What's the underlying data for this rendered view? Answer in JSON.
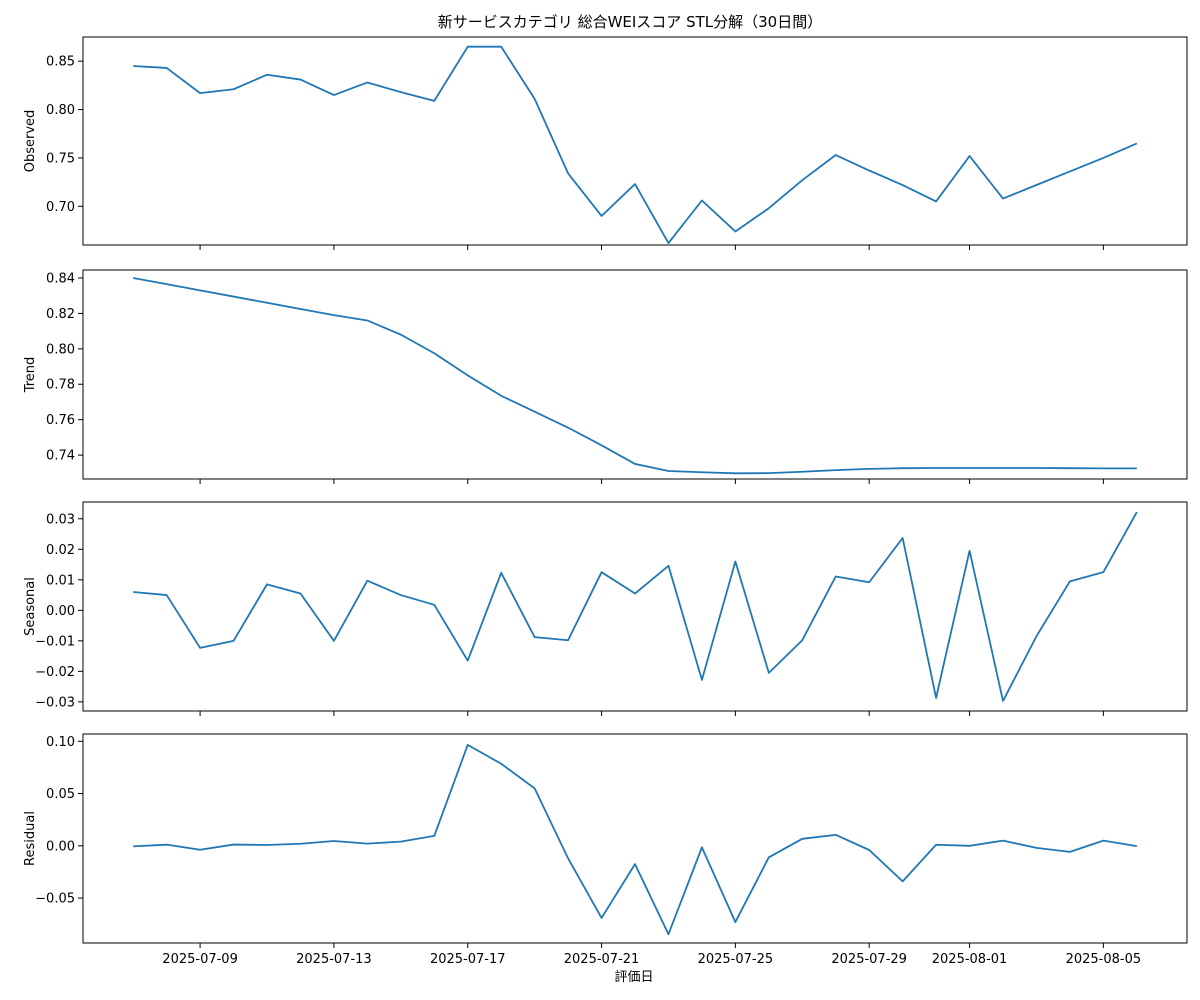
{
  "chart_data": {
    "type": "line",
    "title": "新サービスカテゴリ 総合WEIスコア STL分解（30日間）",
    "xlabel": "評価日",
    "x": [
      "2025-07-07",
      "2025-07-08",
      "2025-07-09",
      "2025-07-10",
      "2025-07-11",
      "2025-07-12",
      "2025-07-13",
      "2025-07-14",
      "2025-07-15",
      "2025-07-16",
      "2025-07-17",
      "2025-07-18",
      "2025-07-19",
      "2025-07-20",
      "2025-07-21",
      "2025-07-22",
      "2025-07-23",
      "2025-07-24",
      "2025-07-25",
      "2025-07-26",
      "2025-07-27",
      "2025-07-28",
      "2025-07-29",
      "2025-07-30",
      "2025-07-31",
      "2025-08-01",
      "2025-08-02",
      "2025-08-03",
      "2025-08-04",
      "2025-08-05",
      "2025-08-06"
    ],
    "x_ticks": [
      "2025-07-09",
      "2025-07-13",
      "2025-07-17",
      "2025-07-21",
      "2025-07-25",
      "2025-07-29",
      "2025-08-01",
      "2025-08-05"
    ],
    "panels": [
      {
        "ylabel": "Observed",
        "ylim": [
          0.66,
          0.875
        ],
        "yticks": [
          0.7,
          0.75,
          0.8,
          0.85
        ],
        "ytick_labels": [
          "0.70",
          "0.75",
          "0.80",
          "0.85"
        ],
        "values": [
          0.845,
          0.843,
          0.817,
          0.821,
          0.836,
          0.831,
          0.815,
          0.828,
          0.818,
          0.809,
          0.865,
          0.865,
          0.811,
          0.734,
          0.69,
          0.723,
          0.662,
          0.706,
          0.674,
          0.698,
          0.727,
          0.753,
          0.737,
          0.722,
          0.705,
          0.752,
          0.708,
          0.722,
          0.736,
          0.75,
          0.765
        ]
      },
      {
        "ylabel": "Trend",
        "ylim": [
          0.7265,
          0.8445
        ],
        "yticks": [
          0.74,
          0.76,
          0.78,
          0.8,
          0.82,
          0.84
        ],
        "ytick_labels": [
          "0.74",
          "0.76",
          "0.78",
          "0.80",
          "0.82",
          "0.84"
        ],
        "values": [
          0.84,
          0.8365,
          0.833,
          0.8295,
          0.826,
          0.8225,
          0.819,
          0.816,
          0.808,
          0.7975,
          0.785,
          0.7735,
          0.7645,
          0.7555,
          0.7455,
          0.735,
          0.731,
          0.7303,
          0.7297,
          0.7298,
          0.7306,
          0.7315,
          0.7322,
          0.7326,
          0.7327,
          0.7327,
          0.7327,
          0.7327,
          0.7326,
          0.7325,
          0.7325
        ]
      },
      {
        "ylabel": "Seasonal",
        "ylim": [
          -0.033,
          0.0355
        ],
        "yticks": [
          -0.03,
          -0.02,
          -0.01,
          0.0,
          0.01,
          0.02,
          0.03
        ],
        "ytick_labels": [
          "−0.03",
          "−0.02",
          "−0.01",
          "0.00",
          "0.01",
          "0.02",
          "0.03"
        ],
        "values": [
          0.006,
          0.005,
          -0.0123,
          -0.01,
          0.0085,
          0.0055,
          -0.01,
          0.0097,
          0.005,
          0.0018,
          -0.0165,
          0.0123,
          -0.0088,
          -0.0098,
          0.0125,
          0.0055,
          0.0146,
          -0.0228,
          0.016,
          -0.0205,
          -0.0098,
          0.0111,
          0.0092,
          0.0237,
          -0.0287,
          0.0195,
          -0.0297,
          -0.0085,
          0.0095,
          0.0125,
          0.0322
        ]
      },
      {
        "ylabel": "Residual",
        "ylim": [
          -0.093,
          0.107
        ],
        "yticks": [
          -0.05,
          0.0,
          0.05,
          0.1
        ],
        "ytick_labels": [
          "−0.05",
          "0.00",
          "0.05",
          "0.10"
        ],
        "values": [
          -0.0005,
          0.0011,
          -0.0038,
          0.0012,
          0.0008,
          0.002,
          0.0046,
          0.0021,
          0.004,
          0.0095,
          0.0966,
          0.0785,
          0.055,
          -0.012,
          -0.069,
          -0.0175,
          -0.0846,
          -0.0015,
          -0.073,
          -0.011,
          0.0067,
          0.0105,
          -0.004,
          -0.034,
          0.001,
          0.0,
          0.005,
          -0.002,
          -0.0058,
          0.005,
          -0.0003
        ]
      }
    ],
    "color": "#1f77b4"
  }
}
